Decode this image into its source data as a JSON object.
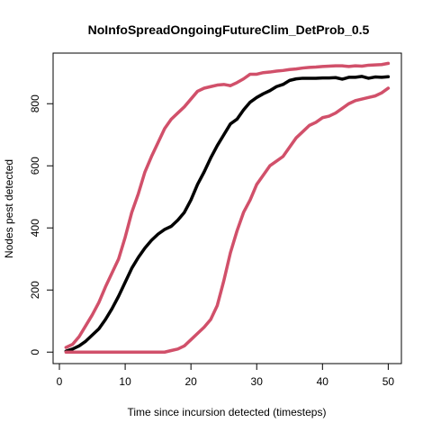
{
  "chart_data": {
    "type": "line",
    "title": "NoInfoSpreadOngoingFutureClim_DetProb_0.5",
    "xlabel": "Time since incursion detected (timesteps)",
    "ylabel": "Nodes pest detected",
    "xlim": [
      -0.96,
      52.0
    ],
    "ylim": [
      -37,
      963
    ],
    "x_ticks": [
      "0",
      "10",
      "20",
      "30",
      "40",
      "50"
    ],
    "y_ticks": [
      "0",
      "200",
      "400",
      "600",
      "800"
    ],
    "grid": false,
    "legend": "none",
    "x": [
      1,
      2,
      3,
      4,
      5,
      6,
      7,
      8,
      9,
      10,
      11,
      12,
      13,
      14,
      15,
      16,
      17,
      18,
      19,
      20,
      21,
      22,
      23,
      24,
      25,
      26,
      27,
      28,
      29,
      30,
      31,
      32,
      33,
      34,
      35,
      36,
      37,
      38,
      39,
      40,
      41,
      42,
      43,
      44,
      45,
      46,
      47,
      48,
      49,
      50
    ],
    "series": [
      {
        "color": "#000000",
        "values": [
          3,
          10,
          20,
          35,
          55,
          75,
          105,
          140,
          180,
          225,
          270,
          305,
          335,
          360,
          380,
          395,
          405,
          425,
          450,
          490,
          540,
          580,
          625,
          665,
          700,
          735,
          750,
          780,
          805,
          820,
          832,
          842,
          855,
          862,
          875,
          880,
          882,
          882,
          882,
          883,
          883,
          884,
          879,
          885,
          885,
          888,
          882,
          886,
          885,
          887
        ]
      },
      {
        "color": "#d1506a",
        "values": [
          15,
          25,
          50,
          85,
          120,
          160,
          210,
          255,
          300,
          370,
          450,
          510,
          580,
          630,
          675,
          720,
          750,
          770,
          790,
          815,
          840,
          850,
          855,
          860,
          862,
          858,
          868,
          880,
          895,
          895,
          900,
          902,
          905,
          907,
          910,
          912,
          915,
          917,
          918,
          920,
          921,
          922,
          922,
          920,
          922,
          921,
          924,
          925,
          926,
          930
        ]
      },
      {
        "color": "#d1506a",
        "values": [
          0,
          0,
          0,
          0,
          0,
          0,
          0,
          0,
          0,
          0,
          0,
          0,
          0,
          0,
          0,
          0,
          5,
          10,
          20,
          40,
          60,
          80,
          105,
          150,
          230,
          320,
          390,
          450,
          490,
          540,
          570,
          600,
          615,
          630,
          660,
          690,
          710,
          730,
          740,
          755,
          760,
          770,
          785,
          800,
          810,
          815,
          820,
          825,
          835,
          850
        ]
      }
    ]
  }
}
